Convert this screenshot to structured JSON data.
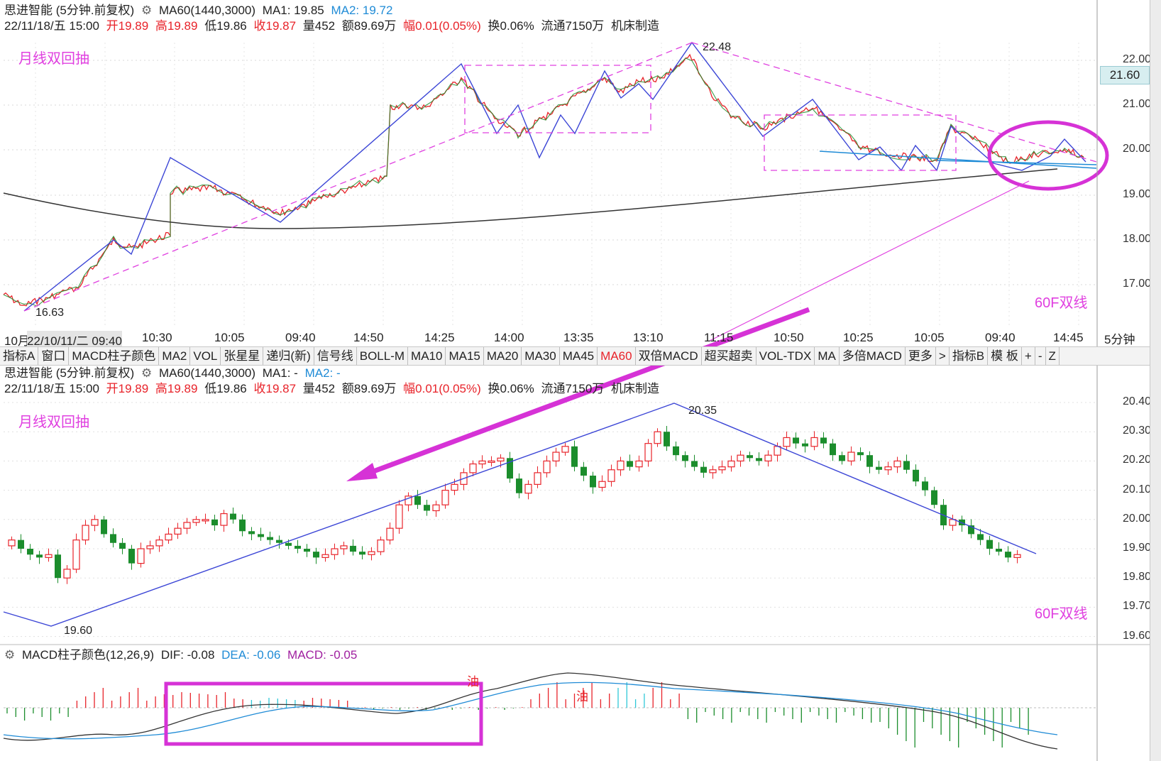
{
  "top_info": {
    "line1": [
      {
        "text": "思进智能 (5分钟.前复权)",
        "color": "dark"
      },
      {
        "text": "MA60(1440,3000)",
        "color": "dark"
      },
      {
        "text": "MA1: 19.85",
        "color": "dark"
      },
      {
        "text": "MA2: 19.72",
        "color": "blue"
      }
    ],
    "line2": [
      {
        "text": "22/11/18/五 15:00",
        "color": "dark"
      },
      {
        "text": "开19.89",
        "color": "red"
      },
      {
        "text": "高19.89",
        "color": "red"
      },
      {
        "text": "低19.86",
        "color": "dark"
      },
      {
        "text": "收19.87",
        "color": "red"
      },
      {
        "text": "量452",
        "color": "dark"
      },
      {
        "text": "额89.69万",
        "color": "dark"
      },
      {
        "text": "幅0.01(0.05%)",
        "color": "red"
      },
      {
        "text": "换0.06%",
        "color": "dark"
      },
      {
        "text": "流通7150万",
        "color": "dark"
      },
      {
        "text": "机床制造",
        "color": "dark"
      }
    ]
  },
  "mid_info": {
    "line1": [
      {
        "text": "思进智能 (5分钟.前复权)",
        "color": "dark"
      },
      {
        "text": "MA60(1440,3000)",
        "color": "dark"
      },
      {
        "text": "MA1: -",
        "color": "dark"
      },
      {
        "text": "MA2: -",
        "color": "blue"
      }
    ],
    "line2": [
      {
        "text": "22/11/18/五 15:00",
        "color": "dark"
      },
      {
        "text": "开19.89",
        "color": "red"
      },
      {
        "text": "高19.89",
        "color": "red"
      },
      {
        "text": "低19.86",
        "color": "dark"
      },
      {
        "text": "收19.87",
        "color": "red"
      },
      {
        "text": "量452",
        "color": "dark"
      },
      {
        "text": "额89.69万",
        "color": "dark"
      },
      {
        "text": "幅0.01(0.05%)",
        "color": "red"
      },
      {
        "text": "换0.06%",
        "color": "dark"
      },
      {
        "text": "流通7150万",
        "color": "dark"
      },
      {
        "text": "机床制造",
        "color": "dark"
      }
    ]
  },
  "macd_info": [
    {
      "text": "MACD柱子颜色(12,26,9)",
      "color": "dark"
    },
    {
      "text": "DIF: -0.08",
      "color": "dark"
    },
    {
      "text": "DEA: -0.06",
      "color": "blue"
    },
    {
      "text": "MACD: -0.05",
      "color": "purple"
    }
  ],
  "notes": {
    "top_left": "月线双回抽",
    "top_right": "60F双线",
    "mid_left": "月线双回抽",
    "mid_right": "60F双线",
    "macd_mark1": "油",
    "macd_mark2": "油"
  },
  "top_price_labels": {
    "high": "22.48",
    "low": "16.63",
    "current": "21.60"
  },
  "mid_price_labels": {
    "high": "20.35",
    "low": "19.60"
  },
  "top_yaxis": [
    "22.00",
    "21.00",
    "20.00",
    "19.00",
    "18.00",
    "17.00"
  ],
  "mid_yaxis": [
    "20.40",
    "20.30",
    "20.20",
    "20.10",
    "20.00",
    "19.90",
    "19.80",
    "19.70",
    "19.60"
  ],
  "date_axis": [
    "10月",
    "22/10/11/二 09:40",
    "10:30",
    "10:05",
    "09:40",
    "14:50",
    "14:25",
    "14:00",
    "13:35",
    "13:10",
    "11:15",
    "10:50",
    "10:25",
    "10:05",
    "09:40",
    "14:45"
  ],
  "period": "5分钟",
  "toolbar": [
    "指标A",
    "窗口",
    "MACD柱子颜色",
    "MA2",
    "VOL",
    "张星星",
    "递归(新)",
    "信号线",
    "BOLL-M",
    "MA10",
    "MA15",
    "MA20",
    "MA30",
    "MA45",
    "MA60",
    "双倍MACD",
    "超买超卖",
    "VOL-TDX",
    "MA",
    "多倍MACD",
    "更多",
    ">",
    "指标B",
    "模 板",
    "+",
    "-",
    "Z"
  ],
  "toolbar_active": "MA60",
  "colors": {
    "up": "#e8232a",
    "down": "#1b8d2c",
    "magenta": "#e040e0",
    "blue_line": "#3c46d6",
    "ma_line": "#333333",
    "dea": "#1f8bd6",
    "cyan": "#30c8d8"
  }
}
